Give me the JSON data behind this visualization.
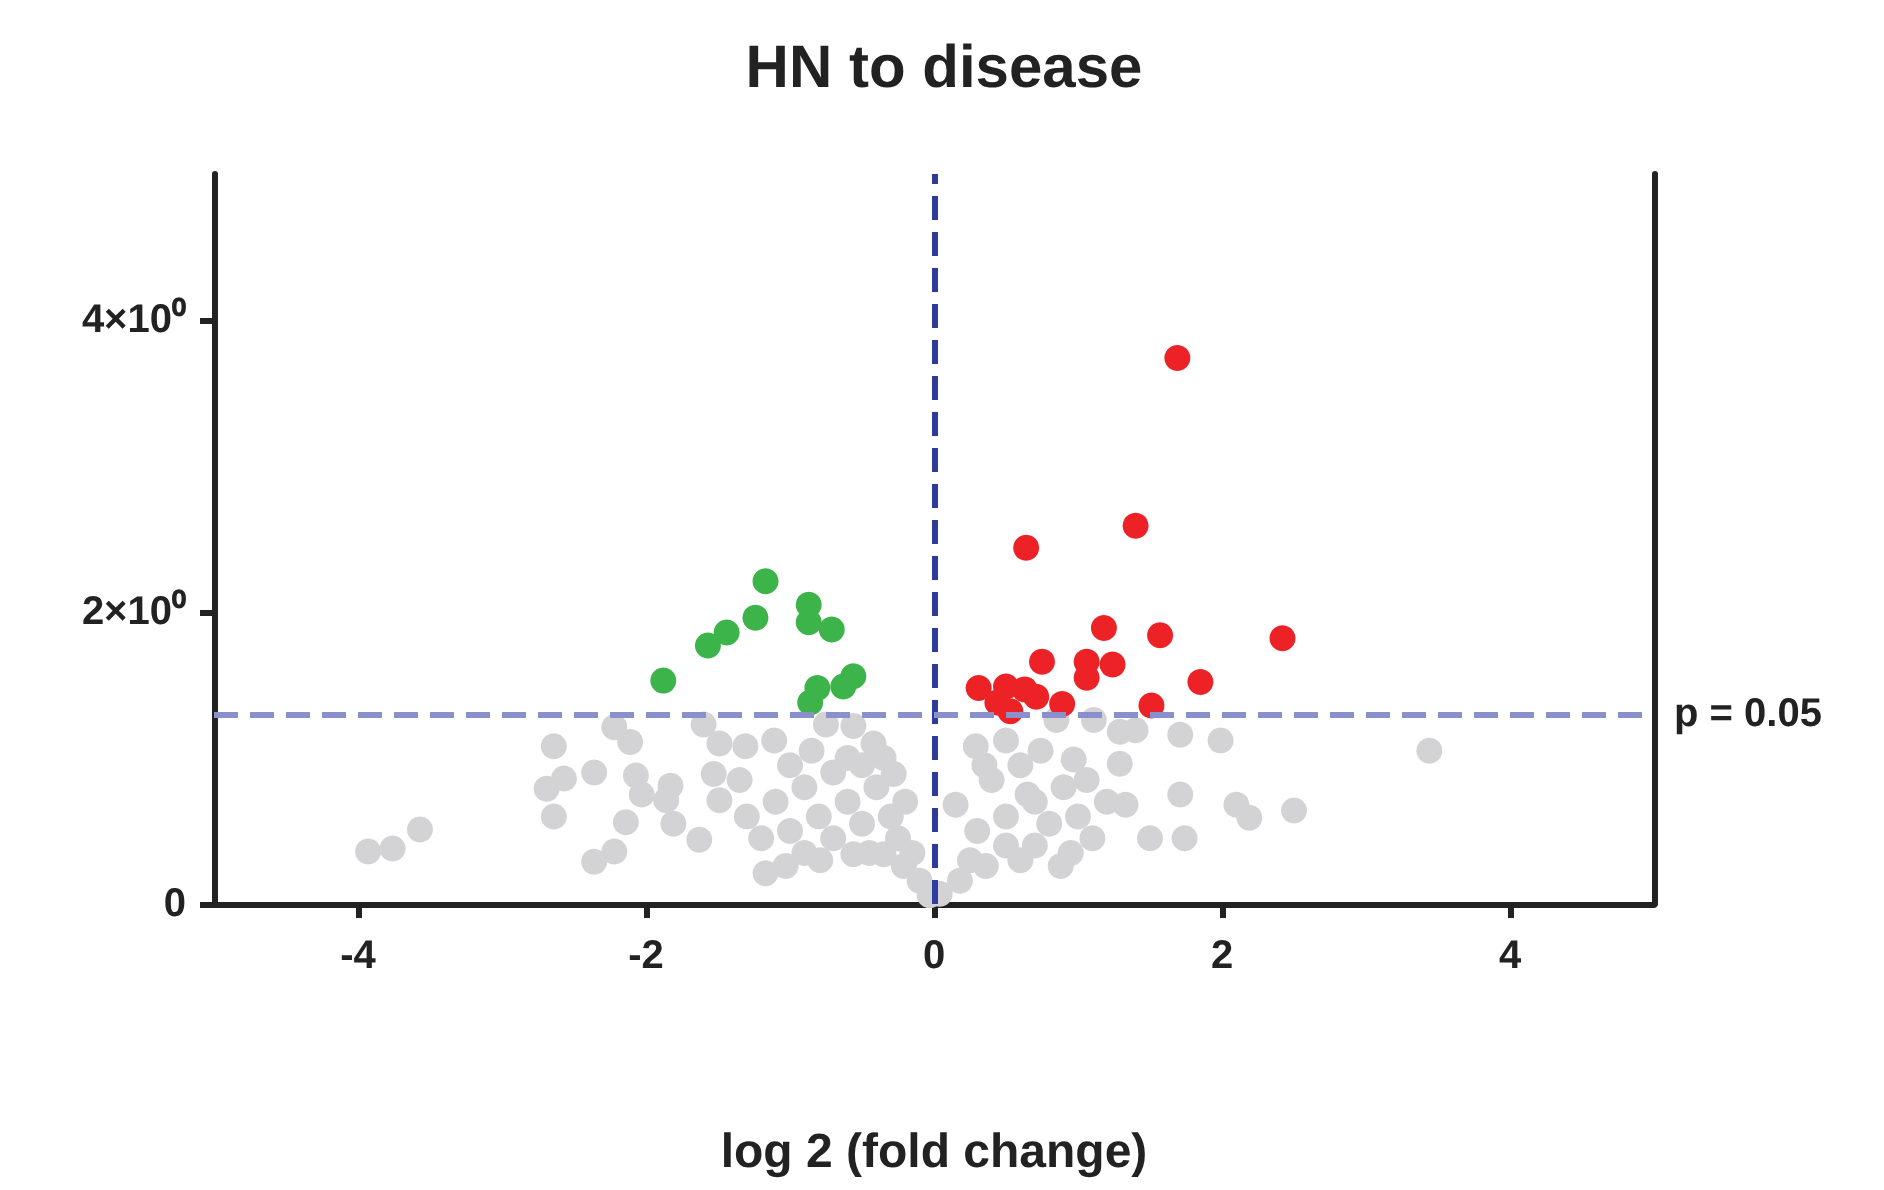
{
  "chart_data": {
    "type": "scatter",
    "title": "HN to disease",
    "xlabel": "log 2 (fold change)",
    "xlim": [
      -5,
      5
    ],
    "xticks": [
      -4,
      -2,
      0,
      2,
      4
    ],
    "ylim": [
      0,
      5
    ],
    "yticks": [
      0,
      {
        "value": 2,
        "label": "2×10⁰"
      },
      {
        "value": 4,
        "label": "4×10⁰"
      }
    ],
    "grid": false,
    "marker": "circle",
    "ref_lines": [
      {
        "axis": "x",
        "value": 0,
        "color": "#2e3a9e",
        "line_style": "dashed"
      },
      {
        "axis": "y",
        "value": 1.301,
        "color": "#8a90cc",
        "line_style": "dashed"
      }
    ],
    "annotations": [
      "p = 0.05"
    ],
    "series": [
      {
        "color": "#d3d3d5",
        "x": [
          -3.93,
          -3.76,
          -3.57,
          -2.64,
          -2.22,
          -2.11,
          -2.36,
          -2.69,
          -2.57,
          -2.64,
          -2.36,
          -2.22,
          -2.14,
          -2.07,
          -2.03,
          -1.83,
          -1.86,
          -1.81,
          -1.63,
          -1.6,
          -1.49,
          -1.31,
          -1.11,
          -0.75,
          -0.56,
          -0.42,
          -0.28,
          -1.49,
          -1.53,
          -1.17,
          -1.03,
          -0.79,
          -0.56,
          -0.35,
          -0.21,
          -0.1,
          -0.03,
          -1.3,
          -1.1,
          -0.9,
          -0.7,
          -0.5,
          -0.4,
          -1.0,
          -0.8,
          -0.6,
          -0.5,
          -0.3,
          -0.25,
          -0.7,
          -0.9,
          -1.2,
          -0.45,
          -0.15,
          -0.6,
          -0.85,
          -1.0,
          -0.35,
          -1.35,
          -0.2,
          0.29,
          0.5,
          0.85,
          1.11,
          1.29,
          1.4,
          1.71,
          1.99,
          1.71,
          2.1,
          2.19,
          2.5,
          1.5,
          1.74,
          1.29,
          1.33,
          1.06,
          0.97,
          0.74,
          0.15,
          0.88,
          0.6,
          0.36,
          0.18,
          0.04,
          0.3,
          0.5,
          0.7,
          0.9,
          0.4,
          0.6,
          0.8,
          1.0,
          1.2,
          0.5,
          0.7,
          0.25,
          1.1,
          0.35,
          0.65,
          0.95,
          3.44
        ],
        "values": [
          0.36,
          0.38,
          0.51,
          1.08,
          1.21,
          1.11,
          0.9,
          0.79,
          0.86,
          0.6,
          0.29,
          0.36,
          0.56,
          0.88,
          0.75,
          0.81,
          0.71,
          0.55,
          0.44,
          1.23,
          1.1,
          1.08,
          1.12,
          1.23,
          1.22,
          1.1,
          0.89,
          0.71,
          0.89,
          0.21,
          0.26,
          0.3,
          0.34,
          0.34,
          0.26,
          0.16,
          0.06,
          0.6,
          0.7,
          0.8,
          0.9,
          0.95,
          0.8,
          0.5,
          0.6,
          0.7,
          0.55,
          0.6,
          0.45,
          0.45,
          0.35,
          0.45,
          0.35,
          0.35,
          1.0,
          1.05,
          0.95,
          1.0,
          0.85,
          0.7,
          1.08,
          1.12,
          1.26,
          1.26,
          1.18,
          1.19,
          1.16,
          1.12,
          0.75,
          0.68,
          0.59,
          0.64,
          0.45,
          0.45,
          0.96,
          0.68,
          0.85,
          0.99,
          1.05,
          0.68,
          0.26,
          0.3,
          0.26,
          0.16,
          0.07,
          0.5,
          0.6,
          0.7,
          0.8,
          0.85,
          0.95,
          0.55,
          0.6,
          0.7,
          0.4,
          0.4,
          0.3,
          0.45,
          0.95,
          0.75,
          0.35,
          1.05
        ]
      },
      {
        "color": "#3cb44a",
        "x": [
          -1.88,
          -1.57,
          -1.44,
          -1.24,
          -1.17,
          -0.87,
          -0.87,
          -0.71,
          -0.56,
          -0.63,
          -0.81,
          -0.86
        ],
        "values": [
          1.53,
          1.77,
          1.86,
          1.96,
          2.21,
          2.05,
          1.93,
          1.88,
          1.56,
          1.49,
          1.48,
          1.38
        ]
      },
      {
        "color": "#ec2227",
        "x": [
          1.69,
          1.4,
          0.64,
          1.18,
          1.57,
          2.42,
          0.75,
          1.06,
          1.24,
          1.06,
          1.85,
          0.31,
          0.5,
          0.63,
          0.71,
          0.44,
          0.53,
          0.89,
          1.51
        ],
        "values": [
          3.74,
          2.59,
          2.44,
          1.89,
          1.84,
          1.82,
          1.66,
          1.66,
          1.64,
          1.55,
          1.52,
          1.48,
          1.49,
          1.47,
          1.42,
          1.38,
          1.32,
          1.37,
          1.36
        ]
      }
    ]
  }
}
